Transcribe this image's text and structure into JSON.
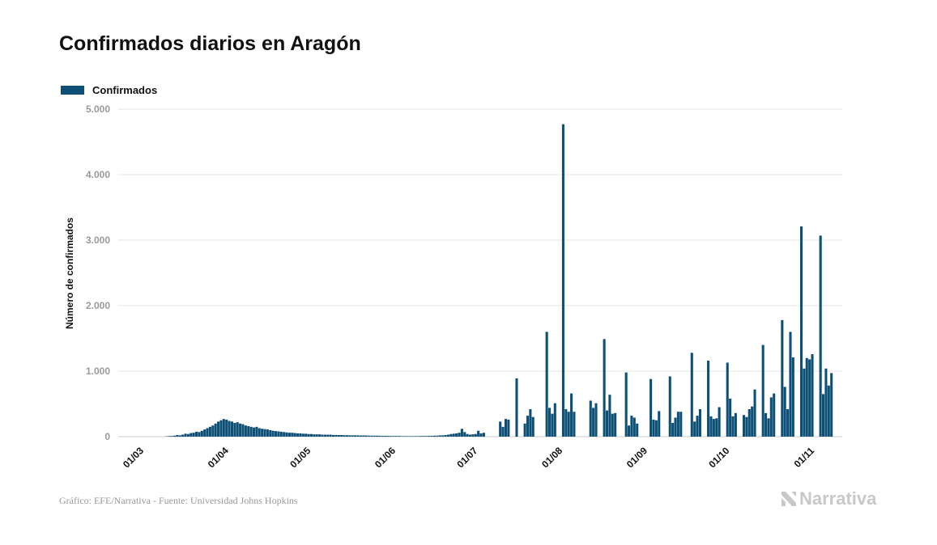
{
  "title": "Confirmados diarios en Aragón",
  "legend": {
    "label": "Confirmados",
    "color": "#0e5075"
  },
  "footer": {
    "credit": "Gráfico: EFE/Narrativa - Fuente: Universidad Johns Hopkins",
    "logo_text": "Narrativa"
  },
  "chart_data": {
    "type": "bar",
    "title": "Confirmados diarios en Aragón",
    "ylabel": "Número de confirmados",
    "xlabel": "",
    "ylim": [
      0,
      5000
    ],
    "yticks": [
      0,
      1000,
      2000,
      3000,
      4000,
      5000
    ],
    "ytick_labels": [
      "0",
      "1.000",
      "2.000",
      "3.000",
      "4.000",
      "5.000"
    ],
    "xtick_labels": [
      "01/03",
      "01/04",
      "01/05",
      "01/06",
      "01/07",
      "01/08",
      "01/09",
      "01/10",
      "01/11"
    ],
    "xtick_days": [
      0,
      31,
      61,
      92,
      122,
      153,
      184,
      214,
      245
    ],
    "grid": true,
    "legend_position": "top-left",
    "series": [
      {
        "name": "Confirmados",
        "color": "#0e5075",
        "start_date": "01/03",
        "values": [
          0,
          0,
          0,
          0,
          0,
          0,
          0,
          0,
          0,
          0,
          5,
          8,
          10,
          15,
          25,
          20,
          30,
          45,
          40,
          55,
          60,
          75,
          70,
          90,
          110,
          130,
          150,
          170,
          200,
          230,
          250,
          270,
          260,
          240,
          230,
          210,
          220,
          200,
          190,
          170,
          160,
          150,
          140,
          150,
          130,
          120,
          115,
          110,
          100,
          90,
          85,
          80,
          75,
          70,
          65,
          60,
          60,
          55,
          50,
          50,
          45,
          45,
          40,
          40,
          35,
          35,
          35,
          30,
          30,
          30,
          30,
          25,
          25,
          25,
          25,
          22,
          22,
          20,
          20,
          20,
          20,
          18,
          18,
          18,
          15,
          15,
          15,
          15,
          14,
          12,
          12,
          12,
          10,
          10,
          10,
          10,
          8,
          8,
          8,
          8,
          8,
          8,
          8,
          10,
          10,
          10,
          12,
          12,
          15,
          15,
          20,
          20,
          25,
          30,
          40,
          45,
          50,
          60,
          120,
          70,
          40,
          30,
          35,
          40,
          90,
          50,
          60,
          0,
          0,
          0,
          0,
          0,
          230,
          150,
          270,
          260,
          0,
          0,
          890,
          0,
          0,
          200,
          320,
          420,
          300,
          0,
          0,
          0,
          0,
          1600,
          440,
          350,
          510,
          0,
          0,
          4770,
          420,
          380,
          660,
          380,
          0,
          0,
          0,
          0,
          0,
          550,
          440,
          510,
          0,
          0,
          1490,
          400,
          640,
          350,
          360,
          0,
          0,
          0,
          980,
          170,
          320,
          290,
          200,
          0,
          0,
          0,
          0,
          880,
          260,
          250,
          390,
          0,
          0,
          0,
          920,
          210,
          290,
          380,
          380,
          0,
          0,
          0,
          1280,
          230,
          320,
          420,
          0,
          0,
          1160,
          310,
          270,
          280,
          450,
          0,
          0,
          1130,
          580,
          310,
          360,
          0,
          0,
          330,
          300,
          420,
          460,
          720,
          0,
          0,
          1400,
          360,
          280,
          600,
          660,
          0,
          0,
          1780,
          760,
          420,
          1600,
          1210,
          0,
          0,
          3210,
          1040,
          1200,
          1180,
          1260,
          0,
          0,
          3070,
          650,
          1040,
          780,
          970
        ]
      }
    ]
  }
}
